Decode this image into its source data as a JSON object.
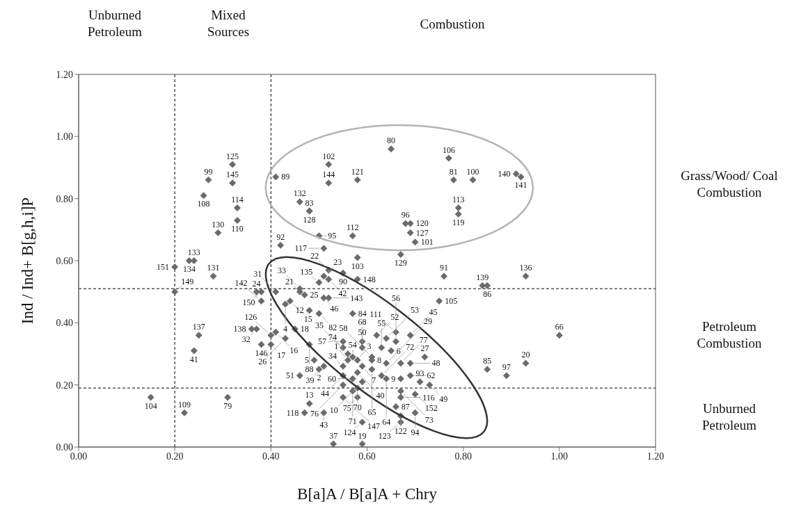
{
  "chart_data": {
    "type": "scatter",
    "xlabel": "B[a]A / B[a]A + Chry",
    "ylabel": "Ind / Ind+ B[g,h,i]P",
    "xlim": [
      0,
      1.2
    ],
    "ylim": [
      0,
      1.2
    ],
    "xticks": [
      {
        "value": 0,
        "label": "0.00"
      },
      {
        "value": 0.2,
        "label": "0.20"
      },
      {
        "value": 0.4,
        "label": "0.40"
      },
      {
        "value": 0.6,
        "label": "0.60"
      },
      {
        "value": 0.8,
        "label": "0.80"
      },
      {
        "value": 1,
        "label": "1.00"
      },
      {
        "value": 1.2,
        "label": "1.20"
      }
    ],
    "yticks": [
      {
        "value": 0,
        "label": "0.00"
      },
      {
        "value": 0.2,
        "label": "0.20"
      },
      {
        "value": 0.4,
        "label": "0.40"
      },
      {
        "value": 0.6,
        "label": "0.60"
      },
      {
        "value": 0.8,
        "label": "0.80"
      },
      {
        "value": 1,
        "label": "1.00"
      },
      {
        "value": 1.2,
        "label": "1.20"
      }
    ],
    "marker": "diamond",
    "ref_lines": [
      {
        "axis": "x",
        "value": 0.2,
        "line_style": "dashed",
        "color": "#000000"
      },
      {
        "axis": "x",
        "value": 0.4,
        "line_style": "dashed",
        "color": "#000000"
      },
      {
        "axis": "y",
        "value": 0.51,
        "line_style": "dashed",
        "color": "#000000"
      },
      {
        "axis": "y",
        "value": 0.19,
        "line_style": "dashed",
        "color": "#000000"
      }
    ],
    "series": [
      {
        "color": "#6b6b6b",
        "x": [
          0.32,
          0.27,
          0.32,
          0.26,
          0.33,
          0.33,
          0.29,
          0.24,
          0.23,
          0.2,
          0.2,
          0.28,
          0.41,
          0.42,
          0.65,
          0.52,
          0.52,
          0.58,
          0.77,
          0.78,
          0.82,
          0.91,
          0.92,
          0.79,
          0.79,
          0.46,
          0.48,
          0.48,
          0.5,
          0.57,
          0.68,
          0.69,
          0.69,
          0.7,
          0.67,
          0.51,
          0.52,
          0.51,
          0.55,
          0.58,
          0.58,
          0.93,
          0.76,
          0.84,
          0.85,
          0.75,
          1.0,
          0.93,
          0.85,
          0.89,
          0.72,
          0.73,
          0.71,
          0.37,
          0.38,
          0.41,
          0.38,
          0.37,
          0.36,
          0.38,
          0.4,
          0.4,
          0.41,
          0.43,
          0.25,
          0.24,
          0.15,
          0.22,
          0.31,
          0.46,
          0.5,
          0.52,
          0.46,
          0.43,
          0.44,
          0.47,
          0.52,
          0.51,
          0.48,
          0.5,
          0.45,
          0.57,
          0.69,
          0.66,
          0.55,
          0.55,
          0.59,
          0.62,
          0.64,
          0.66,
          0.65,
          0.63,
          0.59,
          0.61,
          0.56,
          0.57,
          0.55,
          0.56,
          0.55,
          0.58,
          0.57,
          0.59,
          0.58,
          0.57,
          0.58,
          0.55,
          0.61,
          0.61,
          0.64,
          0.58,
          0.59,
          0.67,
          0.69,
          0.63,
          0.64,
          0.67,
          0.69,
          0.67,
          0.67,
          0.7,
          0.66,
          0.67,
          0.67,
          0.7,
          0.59,
          0.55,
          0.5,
          0.51,
          0.49,
          0.46,
          0.48,
          0.48,
          0.47,
          0.51,
          0.53,
          0.59
        ],
        "values": [
          0.91,
          0.86,
          0.85,
          0.81,
          0.77,
          0.73,
          0.69,
          0.6,
          0.6,
          0.58,
          0.5,
          0.55,
          0.87,
          0.65,
          0.96,
          0.91,
          0.85,
          0.86,
          0.93,
          0.86,
          0.86,
          0.88,
          0.87,
          0.77,
          0.75,
          0.79,
          0.76,
          0.76,
          0.68,
          0.68,
          0.72,
          0.72,
          0.69,
          0.66,
          0.62,
          0.64,
          0.57,
          0.55,
          0.56,
          0.61,
          0.54,
          0.55,
          0.55,
          0.52,
          0.52,
          0.47,
          0.36,
          0.27,
          0.25,
          0.23,
          0.29,
          0.2,
          0.21,
          0.5,
          0.5,
          0.5,
          0.47,
          0.38,
          0.38,
          0.33,
          0.33,
          0.36,
          0.37,
          0.35,
          0.36,
          0.31,
          0.16,
          0.11,
          0.16,
          0.51,
          0.53,
          0.54,
          0.5,
          0.46,
          0.47,
          0.49,
          0.48,
          0.48,
          0.44,
          0.43,
          0.38,
          0.43,
          0.36,
          0.37,
          0.34,
          0.32,
          0.34,
          0.36,
          0.35,
          0.34,
          0.31,
          0.32,
          0.32,
          0.29,
          0.3,
          0.29,
          0.26,
          0.28,
          0.23,
          0.24,
          0.22,
          0.21,
          0.19,
          0.18,
          0.16,
          0.2,
          0.28,
          0.25,
          0.27,
          0.28,
          0.26,
          0.27,
          0.27,
          0.23,
          0.22,
          0.22,
          0.23,
          0.18,
          0.16,
          0.17,
          0.13,
          0.1,
          0.08,
          0.11,
          0.08,
          0.16,
          0.25,
          0.26,
          0.28,
          0.23,
          0.33,
          0.14,
          0.11,
          0.11,
          0.01,
          0.01
        ]
      }
    ],
    "annotations": [
      "Unburned Petroleum",
      "Mixed Sources",
      "Combustion",
      "Grass/Wood/ Coal Combustion",
      "Petroleum Combustion",
      "Unburned Petroleum",
      {
        "text": "125",
        "x": 0.32,
        "y": 0.91
      },
      {
        "text": "99",
        "x": 0.27,
        "y": 0.86
      },
      {
        "text": "145",
        "x": 0.32,
        "y": 0.85
      },
      {
        "text": "108",
        "x": 0.26,
        "y": 0.81
      },
      {
        "text": "114",
        "x": 0.33,
        "y": 0.77
      },
      {
        "text": "110",
        "x": 0.33,
        "y": 0.73
      },
      {
        "text": "130",
        "x": 0.29,
        "y": 0.69
      },
      {
        "text": "133",
        "x": 0.24,
        "y": 0.6
      },
      {
        "text": "134",
        "x": 0.23,
        "y": 0.6
      },
      {
        "text": "151",
        "x": 0.2,
        "y": 0.58
      },
      {
        "text": "149",
        "x": 0.2,
        "y": 0.5
      },
      {
        "text": "131",
        "x": 0.28,
        "y": 0.55
      },
      {
        "text": "89",
        "x": 0.41,
        "y": 0.87
      },
      {
        "text": "92",
        "x": 0.42,
        "y": 0.65
      },
      {
        "text": "80",
        "x": 0.65,
        "y": 0.96
      },
      {
        "text": "102",
        "x": 0.52,
        "y": 0.91
      },
      {
        "text": "144",
        "x": 0.52,
        "y": 0.85
      },
      {
        "text": "121",
        "x": 0.58,
        "y": 0.86
      },
      {
        "text": "106",
        "x": 0.77,
        "y": 0.93
      },
      {
        "text": "81",
        "x": 0.78,
        "y": 0.86
      },
      {
        "text": "100",
        "x": 0.82,
        "y": 0.86
      },
      {
        "text": "140",
        "x": 0.91,
        "y": 0.88
      },
      {
        "text": "141",
        "x": 0.92,
        "y": 0.87
      },
      {
        "text": "113",
        "x": 0.79,
        "y": 0.77
      },
      {
        "text": "119",
        "x": 0.79,
        "y": 0.75
      },
      {
        "text": "132",
        "x": 0.46,
        "y": 0.79
      },
      {
        "text": "128",
        "x": 0.48,
        "y": 0.76
      },
      {
        "text": "83",
        "x": 0.48,
        "y": 0.76
      },
      {
        "text": "95",
        "x": 0.5,
        "y": 0.68
      },
      {
        "text": "112",
        "x": 0.57,
        "y": 0.68
      },
      {
        "text": "96",
        "x": 0.68,
        "y": 0.72
      },
      {
        "text": "120",
        "x": 0.69,
        "y": 0.72
      },
      {
        "text": "127",
        "x": 0.69,
        "y": 0.69
      },
      {
        "text": "101",
        "x": 0.7,
        "y": 0.66
      },
      {
        "text": "129",
        "x": 0.67,
        "y": 0.62
      },
      {
        "text": "117",
        "x": 0.51,
        "y": 0.64
      },
      {
        "text": "22",
        "x": 0.52,
        "y": 0.57
      },
      {
        "text": "23",
        "x": 0.51,
        "y": 0.55
      },
      {
        "text": "90",
        "x": 0.55,
        "y": 0.56
      },
      {
        "text": "103",
        "x": 0.58,
        "y": 0.61
      },
      {
        "text": "148",
        "x": 0.58,
        "y": 0.54
      },
      {
        "text": "136",
        "x": 0.93,
        "y": 0.55
      },
      {
        "text": "91",
        "x": 0.76,
        "y": 0.55
      },
      {
        "text": "139",
        "x": 0.84,
        "y": 0.52
      },
      {
        "text": "86",
        "x": 0.85,
        "y": 0.52
      },
      {
        "text": "105",
        "x": 0.75,
        "y": 0.47
      },
      {
        "text": "66",
        "x": 1.0,
        "y": 0.36
      },
      {
        "text": "20",
        "x": 0.93,
        "y": 0.27
      },
      {
        "text": "85",
        "x": 0.85,
        "y": 0.25
      },
      {
        "text": "97",
        "x": 0.89,
        "y": 0.23
      },
      {
        "text": "27",
        "x": 0.72,
        "y": 0.29
      },
      {
        "text": "49",
        "x": 0.73,
        "y": 0.2
      },
      {
        "text": "93",
        "x": 0.71,
        "y": 0.21
      },
      {
        "text": "24",
        "x": 0.37,
        "y": 0.5
      },
      {
        "text": "150",
        "x": 0.38,
        "y": 0.5
      },
      {
        "text": "31",
        "x": 0.41,
        "y": 0.5
      },
      {
        "text": "142",
        "x": 0.38,
        "y": 0.47
      },
      {
        "text": "32",
        "x": 0.37,
        "y": 0.38
      },
      {
        "text": "138",
        "x": 0.36,
        "y": 0.38
      },
      {
        "text": "146",
        "x": 0.38,
        "y": 0.33
      },
      {
        "text": "17",
        "x": 0.4,
        "y": 0.33
      },
      {
        "text": "126",
        "x": 0.4,
        "y": 0.36
      },
      {
        "text": "16",
        "x": 0.41,
        "y": 0.37
      },
      {
        "text": "26",
        "x": 0.43,
        "y": 0.35
      },
      {
        "text": "137",
        "x": 0.25,
        "y": 0.36
      },
      {
        "text": "41",
        "x": 0.24,
        "y": 0.31
      },
      {
        "text": "104",
        "x": 0.15,
        "y": 0.16
      },
      {
        "text": "109",
        "x": 0.22,
        "y": 0.11
      },
      {
        "text": "79",
        "x": 0.31,
        "y": 0.16
      },
      {
        "text": "33",
        "x": 0.46,
        "y": 0.51
      },
      {
        "text": "135",
        "x": 0.5,
        "y": 0.53
      },
      {
        "text": "42",
        "x": 0.52,
        "y": 0.54
      },
      {
        "text": "21",
        "x": 0.46,
        "y": 0.5
      },
      {
        "text": "4",
        "x": 0.43,
        "y": 0.46
      },
      {
        "text": "15",
        "x": 0.44,
        "y": 0.47
      },
      {
        "text": "25",
        "x": 0.47,
        "y": 0.49
      },
      {
        "text": "143",
        "x": 0.52,
        "y": 0.48
      },
      {
        "text": "46",
        "x": 0.51,
        "y": 0.48
      },
      {
        "text": "12",
        "x": 0.48,
        "y": 0.44
      },
      {
        "text": "82",
        "x": 0.5,
        "y": 0.43
      },
      {
        "text": "18",
        "x": 0.45,
        "y": 0.38
      },
      {
        "text": "84",
        "x": 0.57,
        "y": 0.43
      },
      {
        "text": "45",
        "x": 0.69,
        "y": 0.36
      },
      {
        "text": "111",
        "x": 0.66,
        "y": 0.37
      },
      {
        "text": "57",
        "x": 0.55,
        "y": 0.34
      },
      {
        "text": "74",
        "x": 0.55,
        "y": 0.32
      },
      {
        "text": "68",
        "x": 0.59,
        "y": 0.34
      },
      {
        "text": "52",
        "x": 0.62,
        "y": 0.36
      },
      {
        "text": "53",
        "x": 0.64,
        "y": 0.35
      },
      {
        "text": "56",
        "x": 0.66,
        "y": 0.34
      },
      {
        "text": "6",
        "x": 0.65,
        "y": 0.31
      },
      {
        "text": "55",
        "x": 0.63,
        "y": 0.32
      },
      {
        "text": "50",
        "x": 0.59,
        "y": 0.32
      },
      {
        "text": "58",
        "x": 0.61,
        "y": 0.29
      },
      {
        "text": "35",
        "x": 0.56,
        "y": 0.3
      },
      {
        "text": "54",
        "x": 0.57,
        "y": 0.29
      },
      {
        "text": "34",
        "x": 0.55,
        "y": 0.26
      },
      {
        "text": "1",
        "x": 0.56,
        "y": 0.28
      },
      {
        "text": "44",
        "x": 0.55,
        "y": 0.23
      },
      {
        "text": "40",
        "x": 0.58,
        "y": 0.24
      },
      {
        "text": "60",
        "x": 0.57,
        "y": 0.22
      },
      {
        "text": "10",
        "x": 0.59,
        "y": 0.21
      },
      {
        "text": "70",
        "x": 0.58,
        "y": 0.19
      },
      {
        "text": "71",
        "x": 0.57,
        "y": 0.18
      },
      {
        "text": "75",
        "x": 0.58,
        "y": 0.16
      },
      {
        "text": "76",
        "x": 0.55,
        "y": 0.2
      },
      {
        "text": "8",
        "x": 0.61,
        "y": 0.28
      },
      {
        "text": "65",
        "x": 0.61,
        "y": 0.25
      },
      {
        "text": "29",
        "x": 0.64,
        "y": 0.27
      },
      {
        "text": "3",
        "x": 0.58,
        "y": 0.28
      },
      {
        "text": "7",
        "x": 0.59,
        "y": 0.26
      },
      {
        "text": "77",
        "x": 0.67,
        "y": 0.27
      },
      {
        "text": "48",
        "x": 0.69,
        "y": 0.27
      },
      {
        "text": "72",
        "x": 0.63,
        "y": 0.23
      },
      {
        "text": "64",
        "x": 0.64,
        "y": 0.22
      },
      {
        "text": "9",
        "x": 0.67,
        "y": 0.22
      },
      {
        "text": "62",
        "x": 0.69,
        "y": 0.23
      },
      {
        "text": "73",
        "x": 0.67,
        "y": 0.18
      },
      {
        "text": "116",
        "x": 0.67,
        "y": 0.16
      },
      {
        "text": "152",
        "x": 0.7,
        "y": 0.17
      },
      {
        "text": "87",
        "x": 0.66,
        "y": 0.13
      },
      {
        "text": "122",
        "x": 0.67,
        "y": 0.1
      },
      {
        "text": "123",
        "x": 0.67,
        "y": 0.08
      },
      {
        "text": "94",
        "x": 0.7,
        "y": 0.11
      },
      {
        "text": "124",
        "x": 0.59,
        "y": 0.08
      },
      {
        "text": "147",
        "x": 0.55,
        "y": 0.16
      },
      {
        "text": "2",
        "x": 0.5,
        "y": 0.25
      },
      {
        "text": "39",
        "x": 0.51,
        "y": 0.26
      },
      {
        "text": "5",
        "x": 0.49,
        "y": 0.28
      },
      {
        "text": "51",
        "x": 0.46,
        "y": 0.23
      },
      {
        "text": "88",
        "x": 0.48,
        "y": 0.33
      },
      {
        "text": "13",
        "x": 0.48,
        "y": 0.14
      },
      {
        "text": "118",
        "x": 0.47,
        "y": 0.11
      },
      {
        "text": "43",
        "x": 0.51,
        "y": 0.11
      },
      {
        "text": "37",
        "x": 0.53,
        "y": 0.01
      },
      {
        "text": "19",
        "x": 0.59,
        "y": 0.01
      }
    ]
  }
}
